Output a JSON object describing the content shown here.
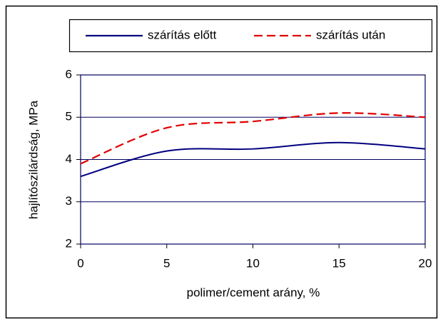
{
  "chart_data": {
    "type": "line",
    "x_label": "polimer/cement arány, %",
    "y_label": "hajlítószilárdság, MPa",
    "x": [
      0,
      5,
      10,
      15,
      20
    ],
    "series": [
      {
        "name": "szárítás előtt",
        "color": "#000080",
        "dash": false,
        "values": [
          3.6,
          4.2,
          4.25,
          4.4,
          4.25
        ]
      },
      {
        "name": "szárítás után",
        "color": "#e00000",
        "dash": true,
        "values": [
          3.9,
          4.75,
          4.9,
          5.1,
          5.0
        ]
      }
    ],
    "xlim": [
      0,
      20
    ],
    "xticks": [
      0,
      5,
      10,
      15,
      20
    ],
    "ylim": [
      2,
      6
    ],
    "yticks": [
      2,
      3,
      4,
      5,
      6
    ],
    "grid": true,
    "legend": "top"
  }
}
